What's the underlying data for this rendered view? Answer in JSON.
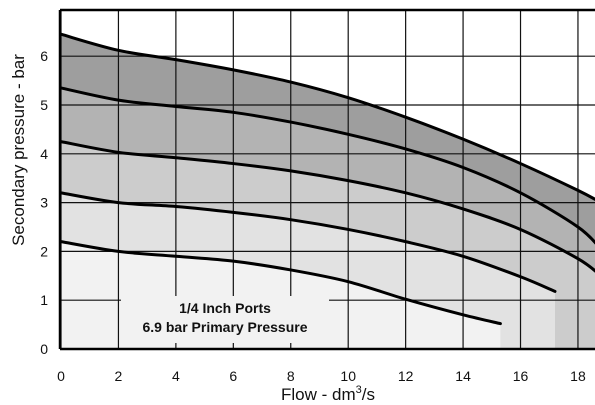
{
  "chart_data": {
    "type": "line",
    "title": "",
    "xlabel": "Flow - dm",
    "xlabel_sup": "3",
    "xlabel_suffix": "/s",
    "ylabel": "Secondary pressure - bar",
    "xlim": [
      0,
      18.8
    ],
    "ylim": [
      0,
      7.5
    ],
    "x_ticks": [
      "0",
      "2",
      "4",
      "6",
      "8",
      "10",
      "12",
      "14",
      "16",
      "18"
    ],
    "y_ticks": [
      "0",
      "1",
      "2",
      "3",
      "4",
      "5",
      "6"
    ],
    "grid": true,
    "annotations": [
      "1/4 Inch Ports",
      "6.9 bar Primary Pressure"
    ],
    "series": [
      {
        "x": [
          0,
          2,
          4,
          6,
          8,
          10,
          12,
          14,
          15.3
        ],
        "y": [
          2.2,
          2.0,
          1.9,
          1.8,
          1.62,
          1.38,
          1.02,
          0.7,
          0.52
        ],
        "band_color": "#f2f2f2",
        "band_end": 15.3
      },
      {
        "x": [
          0,
          2,
          4,
          6,
          8,
          10,
          12,
          14,
          16,
          17.2
        ],
        "y": [
          3.2,
          3.0,
          2.92,
          2.8,
          2.65,
          2.45,
          2.2,
          1.9,
          1.48,
          1.18
        ],
        "band_color": "#e2e2e2",
        "band_end": 17.2
      },
      {
        "x": [
          0,
          2,
          4,
          6,
          8,
          10,
          12,
          14,
          16,
          18,
          18.8
        ],
        "y": [
          4.25,
          4.03,
          3.92,
          3.8,
          3.65,
          3.45,
          3.2,
          2.87,
          2.45,
          1.85,
          1.5
        ],
        "band_color": "#cccccc",
        "band_end": 18.8
      },
      {
        "x": [
          0,
          2,
          4,
          6,
          8,
          10,
          12,
          14,
          16,
          18,
          18.8
        ],
        "y": [
          5.35,
          5.1,
          4.97,
          4.85,
          4.65,
          4.4,
          4.1,
          3.72,
          3.2,
          2.5,
          2.05
        ],
        "band_color": "#b3b3b3",
        "band_end": 18.8
      },
      {
        "x": [
          0,
          2,
          4,
          6,
          8,
          10,
          12,
          14,
          16,
          18,
          18.8
        ],
        "y": [
          6.45,
          6.12,
          5.93,
          5.72,
          5.47,
          5.15,
          4.75,
          4.3,
          3.8,
          3.25,
          3.0
        ],
        "band_color": "#9e9e9e",
        "band_end": 18.8
      }
    ]
  }
}
